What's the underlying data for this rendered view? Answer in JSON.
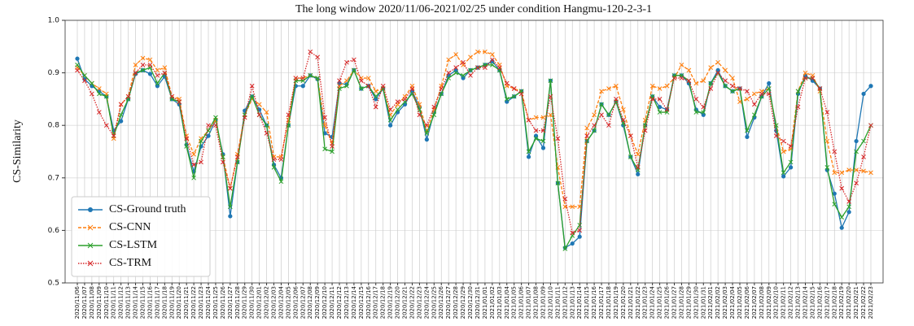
{
  "chart_data": {
    "type": "line",
    "title": "The long window 2020/11/06-2021/02/25 under condition Hangmu-120-2-3-1",
    "y_label": "CS-Similarity",
    "categories": [
      "2020/11/06",
      "2020/11/07",
      "2020/11/08",
      "2020/11/09",
      "2020/11/10",
      "2020/11/11",
      "2020/11/12",
      "2020/11/13",
      "2020/11/14",
      "2020/11/15",
      "2020/11/16",
      "2020/11/17",
      "2020/11/18",
      "2020/11/19",
      "2020/11/20",
      "2020/11/21",
      "2020/11/22",
      "2020/11/23",
      "2020/11/24",
      "2020/11/25",
      "2020/11/26",
      "2020/11/27",
      "2020/11/28",
      "2020/11/29",
      "2020/11/30",
      "2020/12/01",
      "2020/12/02",
      "2020/12/03",
      "2020/12/04",
      "2020/12/05",
      "2020/12/06",
      "2020/12/07",
      "2020/12/08",
      "2020/12/09",
      "2020/12/10",
      "2020/12/11",
      "2020/12/12",
      "2020/12/13",
      "2020/12/14",
      "2020/12/15",
      "2020/12/16",
      "2020/12/17",
      "2020/12/18",
      "2020/12/19",
      "2020/12/20",
      "2020/12/21",
      "2020/12/22",
      "2020/12/23",
      "2020/12/24",
      "2020/12/25",
      "2020/12/26",
      "2020/12/27",
      "2020/12/28",
      "2020/12/29",
      "2020/12/30",
      "2020/12/31",
      "2021/01/01",
      "2021/01/02",
      "2021/01/03",
      "2021/01/04",
      "2021/01/05",
      "2021/01/06",
      "2021/01/07",
      "2021/01/08",
      "2021/01/09",
      "2021/01/10",
      "2021/01/11",
      "2021/01/12",
      "2021/01/13",
      "2021/01/14",
      "2021/01/15",
      "2021/01/16",
      "2021/01/17",
      "2021/01/18",
      "2021/01/19",
      "2021/01/20",
      "2021/01/21",
      "2021/01/22",
      "2021/01/23",
      "2021/01/24",
      "2021/01/25",
      "2021/01/26",
      "2021/01/27",
      "2021/01/28",
      "2021/01/29",
      "2021/01/30",
      "2021/01/31",
      "2021/02/01",
      "2021/02/02",
      "2021/02/03",
      "2021/02/04",
      "2021/02/05",
      "2021/02/06",
      "2021/02/07",
      "2021/02/08",
      "2021/02/09",
      "2021/02/10",
      "2021/02/11",
      "2021/02/12",
      "2021/02/13",
      "2021/02/14",
      "2021/02/15",
      "2021/02/16",
      "2021/02/17",
      "2021/02/18",
      "2021/02/19",
      "2021/02/20",
      "2021/02/21",
      "2021/02/22",
      "2021/02/23"
    ],
    "series": [
      {
        "name": "CS-Ground truth",
        "color": "#1f77b4",
        "marker": "o",
        "dash": "solid",
        "values": [
          0.927,
          0.888,
          0.875,
          0.865,
          0.855,
          0.79,
          0.808,
          0.85,
          0.898,
          0.905,
          0.898,
          0.875,
          0.893,
          0.85,
          0.84,
          0.763,
          0.712,
          0.76,
          0.78,
          0.81,
          0.745,
          0.627,
          0.73,
          0.828,
          0.855,
          0.83,
          0.8,
          0.725,
          0.7,
          0.8,
          0.875,
          0.875,
          0.895,
          0.888,
          0.785,
          0.778,
          0.88,
          0.878,
          0.905,
          0.87,
          0.875,
          0.85,
          0.87,
          0.8,
          0.825,
          0.84,
          0.865,
          0.835,
          0.773,
          0.825,
          0.86,
          0.895,
          0.905,
          0.89,
          0.905,
          0.91,
          0.915,
          0.922,
          0.905,
          0.845,
          0.855,
          0.865,
          0.74,
          0.78,
          0.757,
          0.885,
          0.69,
          0.567,
          0.575,
          0.588,
          0.77,
          0.79,
          0.84,
          0.82,
          0.845,
          0.8,
          0.74,
          0.707,
          0.8,
          0.855,
          0.835,
          0.83,
          0.895,
          0.895,
          0.88,
          0.83,
          0.82,
          0.88,
          0.905,
          0.875,
          0.865,
          0.87,
          0.778,
          0.815,
          0.855,
          0.88,
          0.79,
          0.703,
          0.72,
          0.86,
          0.895,
          0.885,
          0.87,
          0.715,
          0.67,
          0.605,
          0.635,
          0.77,
          0.86,
          0.875
        ]
      },
      {
        "name": "CS-CNN",
        "color": "#ff7f0e",
        "marker": "x",
        "dash": "dashed",
        "values": [
          0.91,
          0.895,
          0.88,
          0.87,
          0.86,
          0.775,
          0.84,
          0.855,
          0.915,
          0.928,
          0.925,
          0.905,
          0.91,
          0.855,
          0.85,
          0.78,
          0.745,
          0.775,
          0.79,
          0.81,
          0.74,
          0.68,
          0.745,
          0.82,
          0.85,
          0.84,
          0.825,
          0.74,
          0.74,
          0.81,
          0.89,
          0.89,
          0.895,
          0.89,
          0.8,
          0.765,
          0.875,
          0.885,
          0.905,
          0.89,
          0.89,
          0.865,
          0.87,
          0.82,
          0.84,
          0.855,
          0.875,
          0.84,
          0.79,
          0.83,
          0.875,
          0.925,
          0.935,
          0.915,
          0.93,
          0.94,
          0.94,
          0.935,
          0.915,
          0.875,
          0.87,
          0.865,
          0.81,
          0.815,
          0.815,
          0.82,
          0.72,
          0.645,
          0.645,
          0.645,
          0.795,
          0.82,
          0.865,
          0.87,
          0.875,
          0.83,
          0.78,
          0.745,
          0.81,
          0.875,
          0.87,
          0.875,
          0.89,
          0.915,
          0.905,
          0.88,
          0.885,
          0.91,
          0.92,
          0.905,
          0.89,
          0.845,
          0.85,
          0.86,
          0.865,
          0.87,
          0.8,
          0.75,
          0.755,
          0.865,
          0.9,
          0.895,
          0.865,
          0.77,
          0.71,
          0.71,
          0.715,
          0.715,
          0.713,
          0.71
        ]
      },
      {
        "name": "CS-LSTM",
        "color": "#2ca02c",
        "marker": "x",
        "dash": "solid",
        "values": [
          0.915,
          0.895,
          0.88,
          0.86,
          0.855,
          0.78,
          0.82,
          0.85,
          0.9,
          0.905,
          0.91,
          0.88,
          0.9,
          0.85,
          0.845,
          0.76,
          0.7,
          0.77,
          0.79,
          0.815,
          0.74,
          0.645,
          0.73,
          0.82,
          0.855,
          0.82,
          0.8,
          0.72,
          0.693,
          0.8,
          0.885,
          0.885,
          0.895,
          0.89,
          0.755,
          0.75,
          0.87,
          0.875,
          0.905,
          0.87,
          0.875,
          0.855,
          0.87,
          0.81,
          0.83,
          0.845,
          0.86,
          0.83,
          0.785,
          0.82,
          0.86,
          0.89,
          0.9,
          0.895,
          0.905,
          0.91,
          0.915,
          0.915,
          0.905,
          0.85,
          0.855,
          0.865,
          0.75,
          0.775,
          0.77,
          0.885,
          0.69,
          0.565,
          0.59,
          0.61,
          0.77,
          0.79,
          0.84,
          0.82,
          0.845,
          0.805,
          0.74,
          0.715,
          0.8,
          0.855,
          0.825,
          0.825,
          0.895,
          0.895,
          0.885,
          0.825,
          0.825,
          0.88,
          0.9,
          0.875,
          0.865,
          0.87,
          0.79,
          0.82,
          0.855,
          0.87,
          0.8,
          0.71,
          0.73,
          0.865,
          0.89,
          0.89,
          0.87,
          0.72,
          0.65,
          0.625,
          0.645,
          0.75,
          0.77,
          0.8
        ]
      },
      {
        "name": "CS-TRM",
        "color": "#d62728",
        "marker": "x",
        "dash": "dotted",
        "values": [
          0.905,
          0.885,
          0.86,
          0.825,
          0.8,
          0.78,
          0.84,
          0.855,
          0.9,
          0.915,
          0.915,
          0.895,
          0.9,
          0.855,
          0.845,
          0.775,
          0.725,
          0.73,
          0.8,
          0.8,
          0.73,
          0.68,
          0.74,
          0.815,
          0.875,
          0.82,
          0.785,
          0.735,
          0.735,
          0.82,
          0.89,
          0.89,
          0.94,
          0.93,
          0.815,
          0.76,
          0.885,
          0.92,
          0.925,
          0.885,
          0.875,
          0.835,
          0.875,
          0.83,
          0.845,
          0.85,
          0.87,
          0.82,
          0.8,
          0.835,
          0.87,
          0.9,
          0.91,
          0.92,
          0.895,
          0.91,
          0.91,
          0.925,
          0.91,
          0.88,
          0.87,
          0.86,
          0.81,
          0.79,
          0.79,
          0.855,
          0.775,
          0.66,
          0.595,
          0.6,
          0.78,
          0.8,
          0.82,
          0.8,
          0.85,
          0.81,
          0.78,
          0.72,
          0.79,
          0.85,
          0.85,
          0.83,
          0.89,
          0.89,
          0.885,
          0.85,
          0.835,
          0.87,
          0.9,
          0.885,
          0.875,
          0.87,
          0.865,
          0.84,
          0.86,
          0.86,
          0.78,
          0.77,
          0.76,
          0.835,
          0.89,
          0.89,
          0.87,
          0.825,
          0.75,
          0.68,
          0.655,
          0.69,
          0.74,
          0.8
        ]
      }
    ],
    "ylim": [
      0.5,
      1.0
    ],
    "yticks": [
      0.5,
      0.6,
      0.7,
      0.8,
      0.9,
      {
        "value": 1.0,
        "label": "1.0"
      }
    ],
    "grid": true,
    "legend": "lower left"
  }
}
